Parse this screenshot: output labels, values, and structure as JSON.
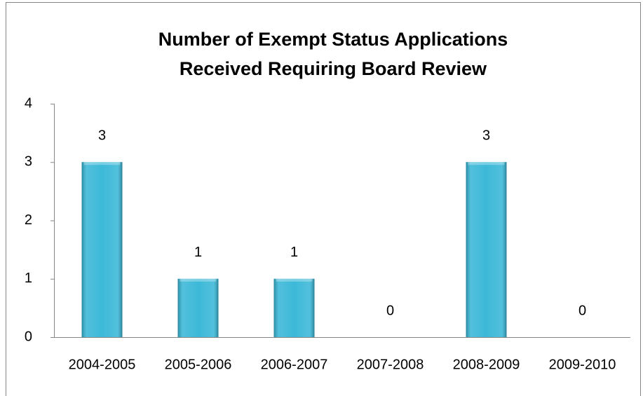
{
  "chart_data": {
    "type": "bar",
    "title": [
      "Number of Exempt Status Applications",
      "Received Requiring Board Review"
    ],
    "categories": [
      "2004-2005",
      "2005-2006",
      "2006-2007",
      "2007-2008",
      "2008-2009",
      "2009-2010"
    ],
    "values": [
      3,
      1,
      1,
      0,
      3,
      0
    ],
    "color": "#33b5d6",
    "ylim": [
      0,
      4
    ],
    "yticks": [
      0,
      1,
      2,
      3,
      4
    ],
    "grid": false,
    "data_labels": true
  }
}
